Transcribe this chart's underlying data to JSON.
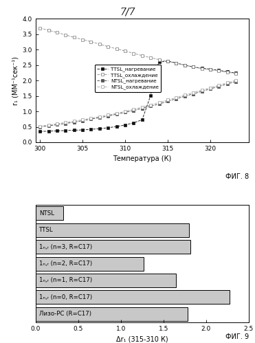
{
  "title": "7/7",
  "fig8_label": "ФИГ. 8",
  "fig9_label": "ФИГ. 9",
  "fig8": {
    "xlabel": "Температура (К)",
    "ylabel": "r₁ (ММ⁻¹сек⁻¹)",
    "xlim": [
      299.5,
      324.5
    ],
    "ylim": [
      0.0,
      4.0
    ],
    "xticks": [
      300,
      305,
      310,
      315,
      320
    ],
    "yticks": [
      0.0,
      0.5,
      1.0,
      1.5,
      2.0,
      2.5,
      3.0,
      3.5,
      4.0
    ],
    "series": {
      "TTSL_heating": {
        "label": "TTSL_нагревание",
        "x": [
          300,
          301,
          302,
          303,
          304,
          305,
          306,
          307,
          308,
          309,
          310,
          311,
          312,
          313,
          313.5,
          314,
          315,
          316,
          317,
          318,
          319,
          320,
          321,
          322,
          323
        ],
        "y": [
          0.35,
          0.36,
          0.37,
          0.38,
          0.39,
          0.4,
          0.42,
          0.44,
          0.47,
          0.51,
          0.56,
          0.63,
          0.73,
          1.52,
          2.32,
          2.6,
          2.63,
          2.57,
          2.5,
          2.44,
          2.4,
          2.37,
          2.33,
          2.29,
          2.24
        ]
      },
      "TTSL_cooling": {
        "label": "TTSL_охлаждение",
        "x": [
          300,
          301,
          302,
          303,
          304,
          305,
          306,
          307,
          308,
          309,
          310,
          311,
          312,
          313,
          314,
          315,
          316,
          317,
          318,
          319,
          320,
          321,
          322,
          323
        ],
        "y": [
          3.7,
          3.63,
          3.56,
          3.48,
          3.4,
          3.33,
          3.26,
          3.18,
          3.1,
          3.03,
          2.96,
          2.88,
          2.81,
          2.74,
          2.68,
          2.62,
          2.56,
          2.5,
          2.44,
          2.39,
          2.35,
          2.31,
          2.27,
          2.23
        ]
      },
      "NTSL_heating": {
        "label": "NTSL_нагревание",
        "x": [
          300,
          301,
          302,
          303,
          304,
          305,
          306,
          307,
          308,
          309,
          310,
          311,
          312,
          313,
          314,
          315,
          316,
          317,
          318,
          319,
          320,
          321,
          322,
          323
        ],
        "y": [
          0.5,
          0.53,
          0.57,
          0.61,
          0.65,
          0.7,
          0.75,
          0.8,
          0.85,
          0.91,
          0.97,
          1.03,
          1.1,
          1.17,
          1.24,
          1.33,
          1.41,
          1.49,
          1.57,
          1.65,
          1.73,
          1.81,
          1.89,
          1.97
        ]
      },
      "NTSL_cooling": {
        "label": "NTSL_охлаждение",
        "x": [
          300,
          301,
          302,
          303,
          304,
          305,
          306,
          307,
          308,
          309,
          310,
          311,
          312,
          313,
          314,
          315,
          316,
          317,
          318,
          319,
          320,
          321,
          322,
          323
        ],
        "y": [
          0.52,
          0.56,
          0.6,
          0.64,
          0.68,
          0.73,
          0.78,
          0.83,
          0.88,
          0.94,
          1.0,
          1.07,
          1.14,
          1.21,
          1.29,
          1.37,
          1.45,
          1.53,
          1.61,
          1.69,
          1.77,
          1.85,
          1.93,
          2.01
        ]
      }
    }
  },
  "fig9": {
    "xlabel": "Δr₁ (315-310 К)",
    "xlim": [
      0.0,
      2.5
    ],
    "xticks": [
      0.0,
      0.5,
      1.0,
      1.5,
      2.0,
      2.5
    ],
    "bar_color": "#c8c8c8",
    "bar_edgecolor": "#000000",
    "categories": [
      "NTSL",
      "TTSL",
      "1ₙ,ᵣ (n=3, R=C17)",
      "1ₙ,ᵣ (n=2, R=C17)",
      "1ₙ,ᵣ (n=1, R=C17)",
      "1ₙ,ᵣ (n=0, R=C17)",
      "Лизо-РС (R=C17)"
    ],
    "values": [
      0.32,
      1.8,
      1.82,
      1.27,
      1.65,
      2.28,
      1.78
    ]
  }
}
